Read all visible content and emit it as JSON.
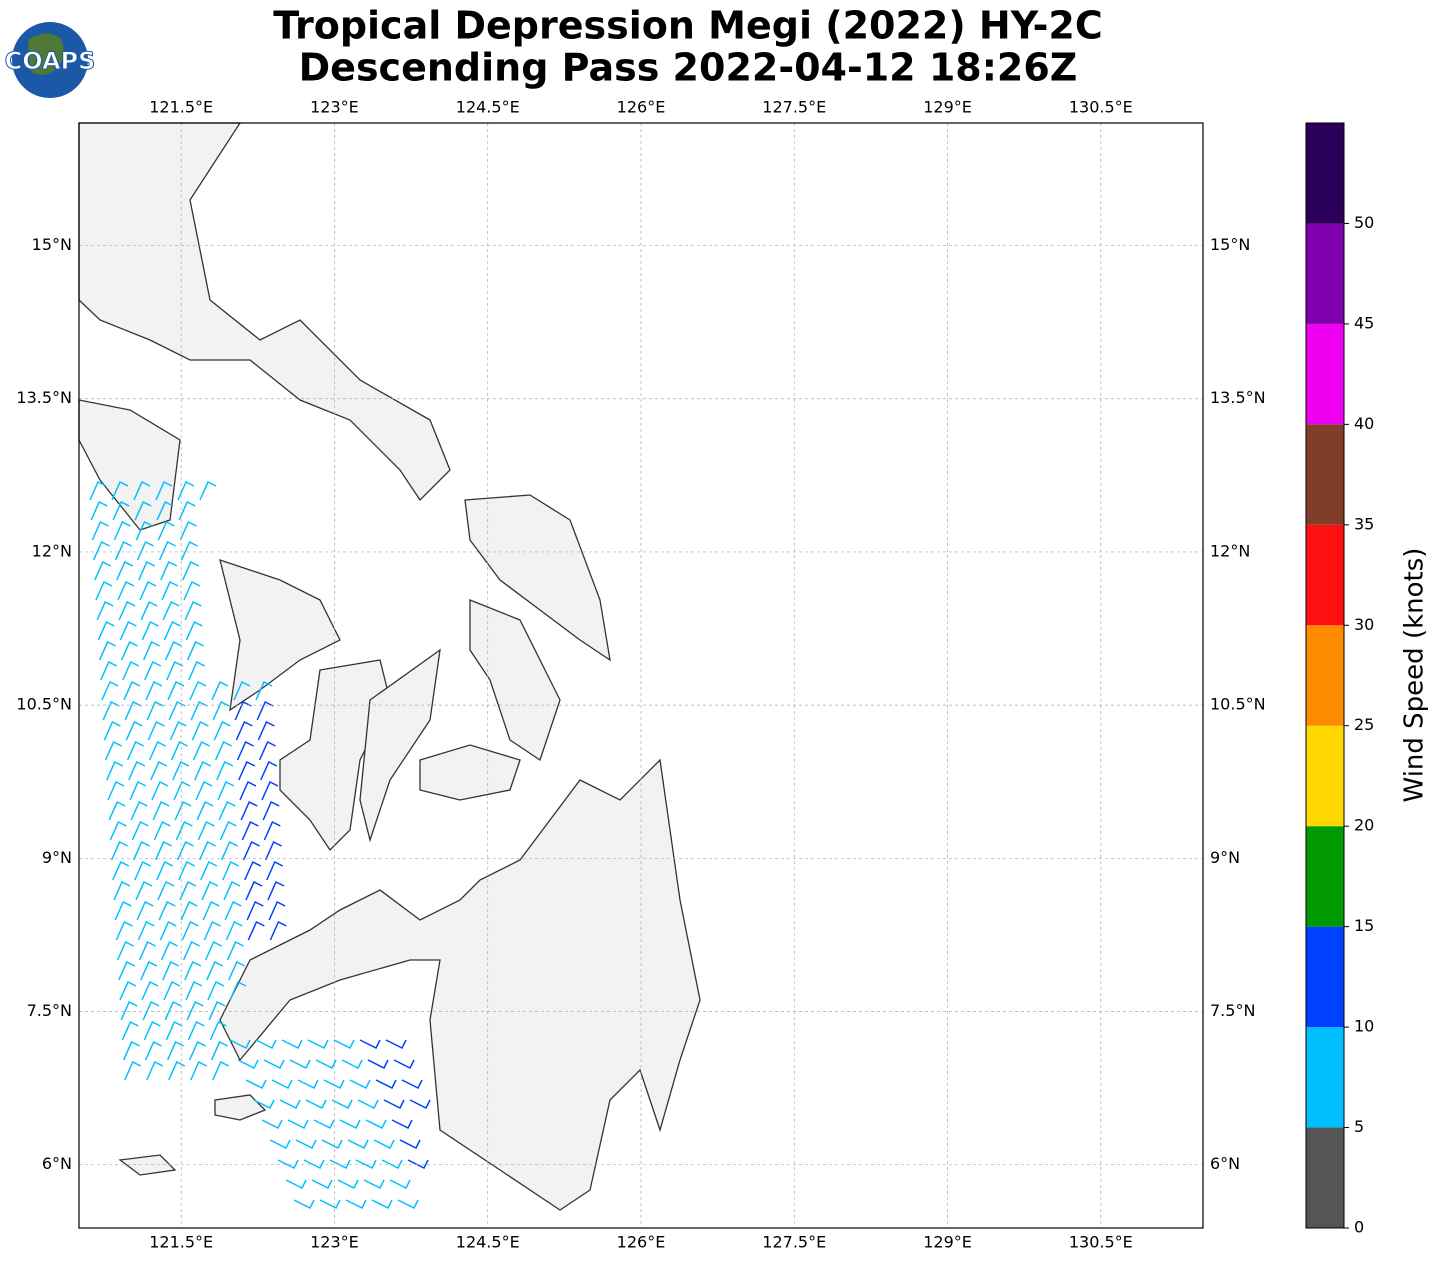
{
  "header": {
    "title": [
      "Tropical Depression Megi (2022) HY-2C",
      "Descending Pass 2022-04-12 18:26Z"
    ],
    "logo": "COAPS"
  },
  "map": {
    "lonlim": [
      120.5,
      131.5
    ],
    "latlim": [
      5.38,
      16.2
    ],
    "lon_ticks": [
      {
        "value": 121.5,
        "label": "121.5°E"
      },
      {
        "value": 123,
        "label": "123°E"
      },
      {
        "value": 124.5,
        "label": "124.5°E"
      },
      {
        "value": 126,
        "label": "126°E"
      },
      {
        "value": 127.5,
        "label": "127.5°E"
      },
      {
        "value": 129,
        "label": "129°E"
      },
      {
        "value": 130.5,
        "label": "130.5°E"
      }
    ],
    "lat_ticks": [
      {
        "value": 15,
        "label": "15°N"
      },
      {
        "value": 13.5,
        "label": "13.5°N"
      },
      {
        "value": 12,
        "label": "12°N"
      },
      {
        "value": 10.5,
        "label": "10.5°N"
      },
      {
        "value": 9,
        "label": "9°N"
      },
      {
        "value": 7.5,
        "label": "7.5°N"
      },
      {
        "value": 6,
        "label": "6°N"
      }
    ]
  },
  "colorbar": {
    "label": "Wind Speed (knots)",
    "range": [
      0,
      55
    ],
    "ticks": [
      0,
      5,
      10,
      15,
      20,
      25,
      30,
      35,
      40,
      45,
      50
    ],
    "colors": [
      "#555555",
      "#00bfff",
      "#0040ff",
      "#009900",
      "#ffd700",
      "#ff8c00",
      "#ff1010",
      "#803d28",
      "#f000f0",
      "#8000b0",
      "#2b005a"
    ]
  }
}
